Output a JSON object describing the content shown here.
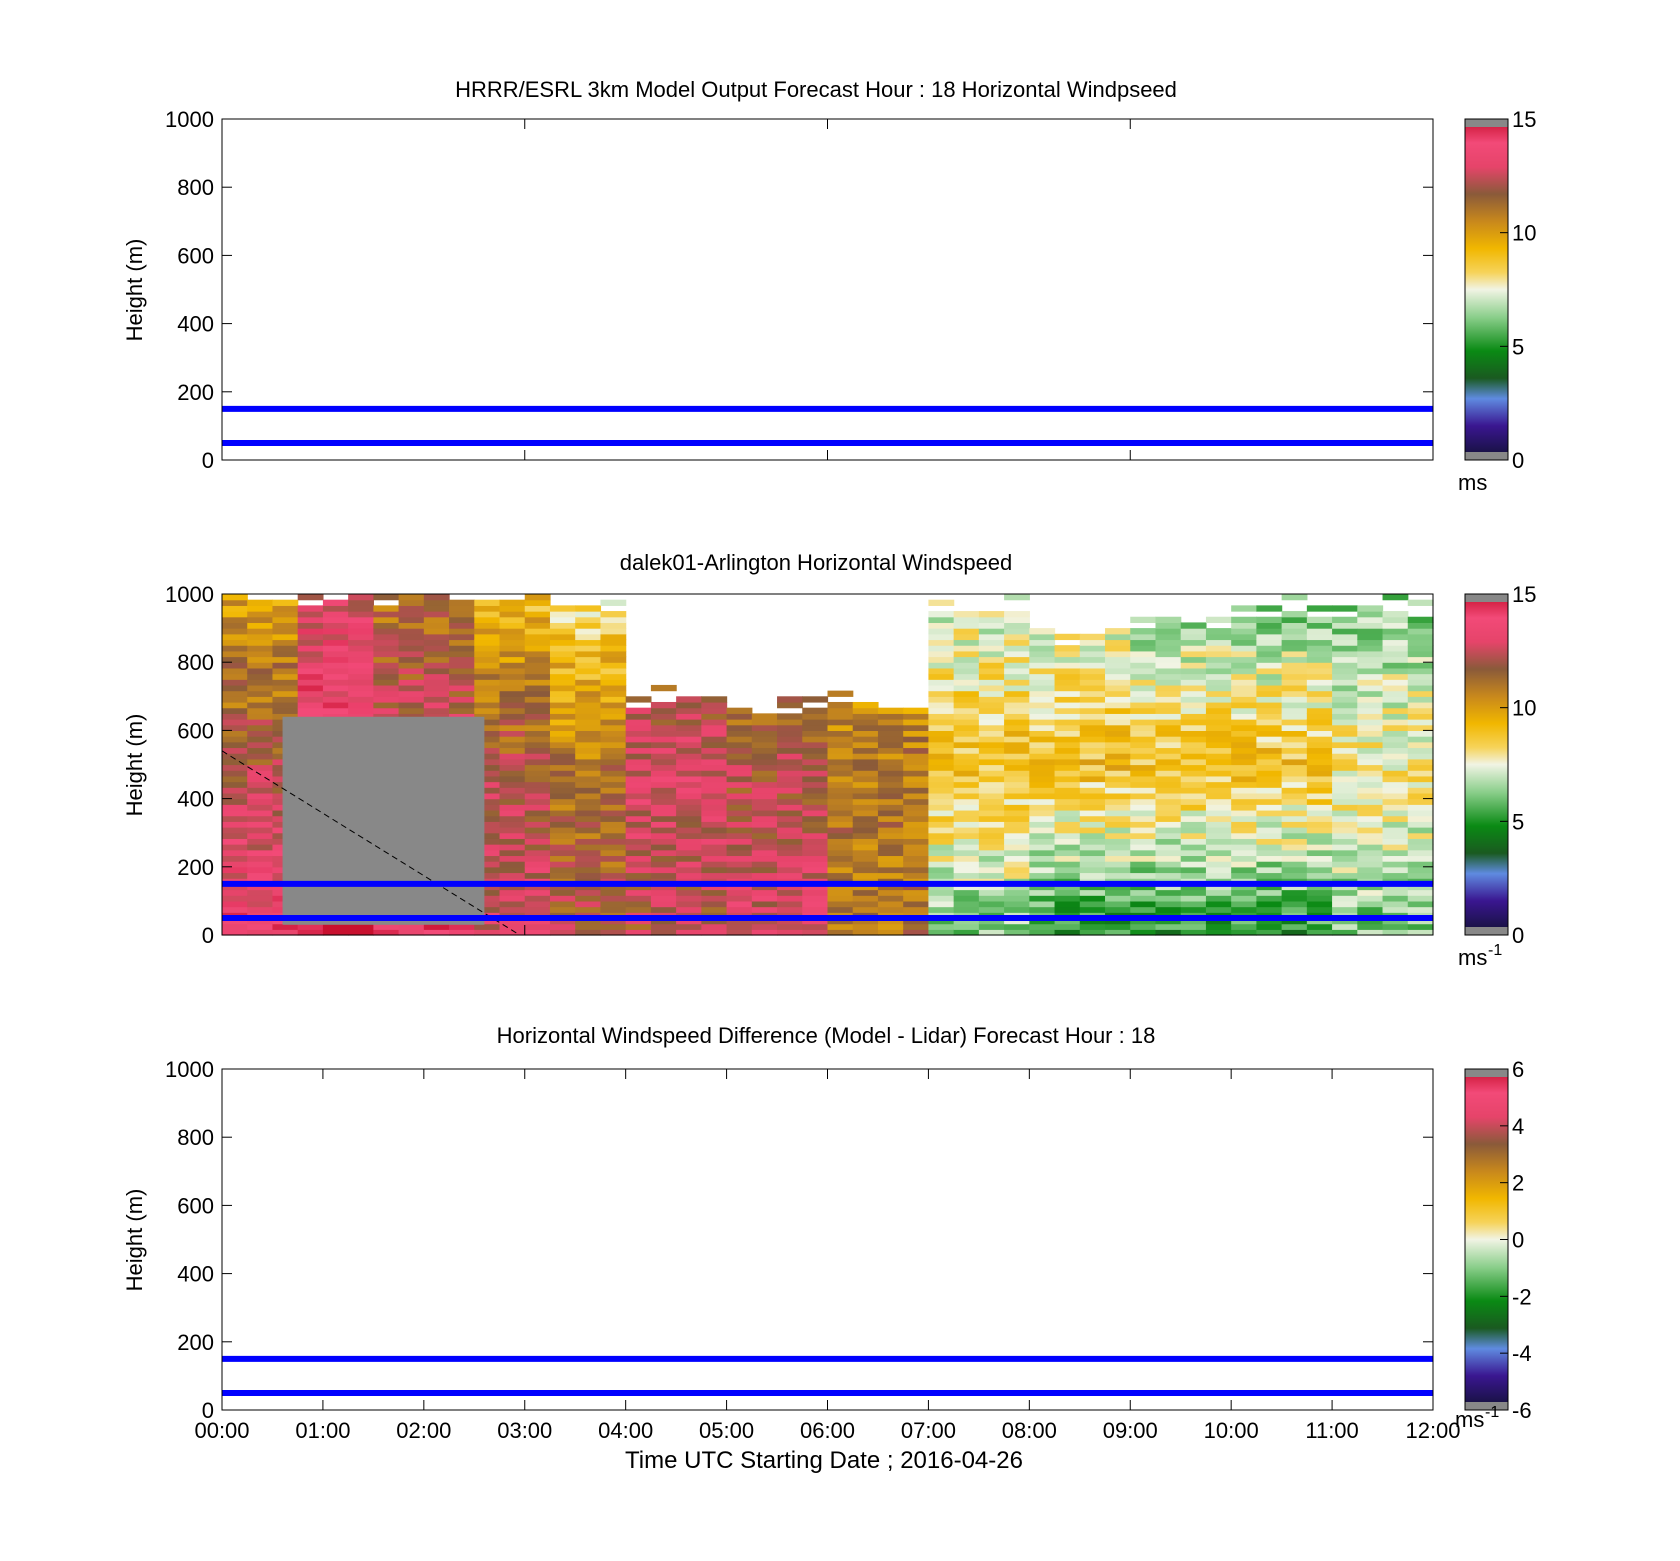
{
  "figure": {
    "xlabel": "Time UTC  Starting Date ; 2016-04-26",
    "x_ticks": [
      "00:00",
      "01:00",
      "02:00",
      "03:00",
      "04:00",
      "05:00",
      "06:00",
      "07:00",
      "08:00",
      "09:00",
      "10:00",
      "11:00",
      "12:00"
    ]
  },
  "chart_data": [
    {
      "type": "heatmap",
      "title": "HRRR/ESRL 3km Model Output   Forecast Hour : 18 Horizontal Windpseed",
      "ylabel": "Height (m)",
      "xlim_hours": [
        0,
        12
      ],
      "ylim": [
        0,
        1000
      ],
      "y_ticks": [
        "0",
        "200",
        "400",
        "600",
        "800",
        "1000"
      ],
      "reference_lines_m": [
        50,
        150
      ],
      "reference_line_color": "#0000ff",
      "colorbar": {
        "ticks": [
          "0",
          "5",
          "10",
          "15"
        ],
        "range": [
          0,
          15
        ],
        "unit": "ms",
        "unit_sup": ""
      },
      "field": "none"
    },
    {
      "type": "heatmap",
      "title": "dalek01-Arlington  Horizontal Windspeed",
      "ylabel": "Height (m)",
      "xlim_hours": [
        0,
        12
      ],
      "ylim": [
        0,
        1000
      ],
      "y_ticks": [
        "0",
        "200",
        "400",
        "600",
        "800",
        "1000"
      ],
      "reference_lines_m": [
        50,
        150
      ],
      "reference_line_color": "#0000ff",
      "colorbar": {
        "ticks": [
          "0",
          "5",
          "10",
          "15"
        ],
        "range": [
          0,
          15
        ],
        "unit": "ms",
        "unit_sup": "-1"
      },
      "field": "lidar",
      "profile_columns": [
        {
          "t": 0.25,
          "top": 1000,
          "speeds": [
            14,
            12,
            10
          ]
        },
        {
          "t": 1.0,
          "top": 1000,
          "speeds": [
            15,
            14,
            13
          ]
        },
        {
          "t": 2.0,
          "top": 1000,
          "speeds": [
            14,
            13,
            11
          ]
        },
        {
          "t": 2.75,
          "top": 1000,
          "speeds": [
            13,
            12,
            9
          ]
        },
        {
          "t": 3.5,
          "top": 980,
          "speeds": [
            12,
            11,
            8
          ]
        },
        {
          "t": 4.5,
          "top": 700,
          "speeds": [
            12,
            13,
            10
          ]
        },
        {
          "t": 5.5,
          "top": 660,
          "speeds": [
            13,
            12,
            10
          ]
        },
        {
          "t": 6.5,
          "top": 680,
          "speeds": [
            11,
            11,
            9
          ]
        },
        {
          "t": 7.5,
          "top": 960,
          "speeds": [
            6,
            9,
            7
          ]
        },
        {
          "t": 8.5,
          "top": 880,
          "speeds": [
            5,
            9,
            7
          ]
        },
        {
          "t": 9.5,
          "top": 920,
          "speeds": [
            5,
            9,
            6
          ]
        },
        {
          "t": 10.5,
          "top": 960,
          "speeds": [
            5,
            9,
            6
          ]
        },
        {
          "t": 11.5,
          "top": 960,
          "speeds": [
            6,
            8,
            6
          ]
        }
      ],
      "no_data_region": {
        "t_range": [
          0.6,
          2.6
        ],
        "h_range": [
          30,
          640
        ]
      },
      "dashed_line": {
        "from": [
          0,
          540
        ],
        "to": [
          2.95,
          0
        ]
      }
    },
    {
      "type": "heatmap",
      "title": "Horizontal Windspeed Difference (Model - Lidar) Forecast Hour : 18",
      "ylabel": "Height (m)",
      "xlim_hours": [
        0,
        12
      ],
      "ylim": [
        0,
        1000
      ],
      "y_ticks": [
        "0",
        "200",
        "400",
        "600",
        "800",
        "1000"
      ],
      "reference_lines_m": [
        50,
        150
      ],
      "reference_line_color": "#0000ff",
      "colorbar": {
        "ticks": [
          "-6",
          "-4",
          "-2",
          "0",
          "2",
          "4",
          "6"
        ],
        "range": [
          -6,
          6
        ],
        "unit": "ms",
        "unit_sup": "-1"
      },
      "field": "none"
    }
  ]
}
